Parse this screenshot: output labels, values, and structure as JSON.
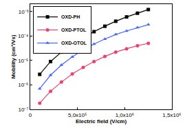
{
  "chart_data": {
    "type": "line",
    "x_label": "Electric field (V/cm)",
    "y_label": "Mobility (cm²/Vs)",
    "log": "y",
    "legend": "upper left",
    "xlim": [
      0,
      1500000
    ],
    "xticks": [
      0,
      {
        "value": 500000,
        "label": "5,0x10⁵"
      },
      {
        "value": 1000000,
        "label": "1,0x10⁶"
      },
      {
        "value": 1500000,
        "label": "1,5x10⁶"
      }
    ],
    "ylim": [
      1e-07,
      0.002
    ],
    "yticks": [
      {
        "value": 1e-07,
        "label": "10⁻⁷"
      },
      {
        "value": 1e-06,
        "label": "10⁻⁶"
      },
      {
        "value": 1e-05,
        "label": "10⁻⁵"
      },
      {
        "value": 0.0001,
        "label": "10⁻⁴"
      },
      {
        "value": 0.001,
        "label": "10⁻³"
      }
    ],
    "x": [
      100000,
      215000,
      330000,
      445000,
      560000,
      675000,
      790000,
      905000,
      1020000,
      1135000,
      1250000
    ],
    "series": [
      {
        "name": "OXD-PH",
        "color": "#000000",
        "marker": "square",
        "values": [
          2.7e-06,
          9e-06,
          2.2e-05,
          4.5e-05,
          8.5e-05,
          0.00015,
          0.00025,
          0.0004,
          0.0006,
          0.00085,
          0.0012
        ]
      },
      {
        "name": "OXD-PTOL",
        "color": "#f0406a",
        "marker": "circle",
        "values": [
          1.8e-07,
          5.5e-07,
          1.3e-06,
          2.8e-06,
          5.2e-06,
          9e-06,
          1.45e-05,
          2.2e-05,
          3e-05,
          4e-05,
          5e-05
        ]
      },
      {
        "name": "OXD-OTOL",
        "color": "#4466ff",
        "marker": "triangle",
        "values": [
          7e-07,
          2.5e-06,
          6.5e-06,
          1.4e-05,
          2.7e-05,
          4.7e-05,
          7.5e-05,
          0.000115,
          0.00016,
          0.00022,
          0.00029
        ]
      }
    ]
  }
}
